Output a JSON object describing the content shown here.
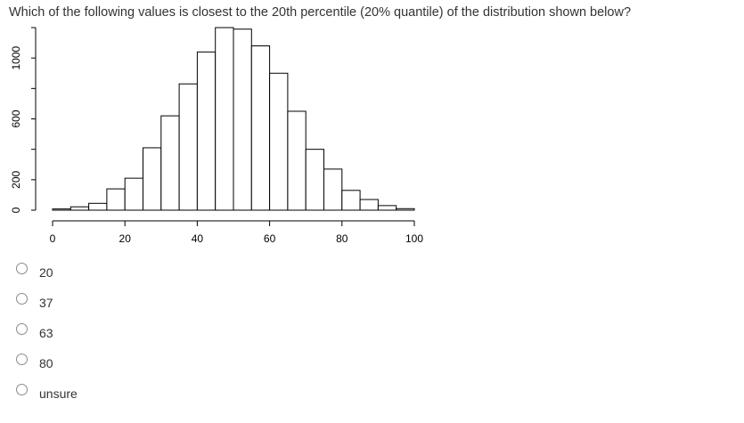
{
  "question": "Which of the following values is closest to the 20th percentile (20% quantile) of the distribution shown below?",
  "chart_data": {
    "type": "bar",
    "title": "",
    "xlabel": "",
    "ylabel": "",
    "bin_width": 5,
    "bins_start": [
      0,
      5,
      10,
      15,
      20,
      25,
      30,
      35,
      40,
      45,
      50,
      55,
      60,
      65,
      70,
      75,
      80,
      85,
      90,
      95
    ],
    "values": [
      8,
      22,
      45,
      140,
      210,
      410,
      620,
      830,
      1040,
      1200,
      1190,
      1080,
      900,
      650,
      400,
      270,
      130,
      70,
      30,
      10
    ],
    "xlim": [
      0,
      100
    ],
    "ylim": [
      0,
      1200
    ],
    "x_ticks": [
      "0",
      "20",
      "40",
      "60",
      "80",
      "100"
    ],
    "y_ticks": [
      "0",
      "200",
      "600",
      "1000"
    ],
    "bar_fill": "#ffffff",
    "bar_stroke": "#000000"
  },
  "options": [
    {
      "label": "20"
    },
    {
      "label": "37"
    },
    {
      "label": "63"
    },
    {
      "label": "80"
    },
    {
      "label": "unsure"
    }
  ]
}
